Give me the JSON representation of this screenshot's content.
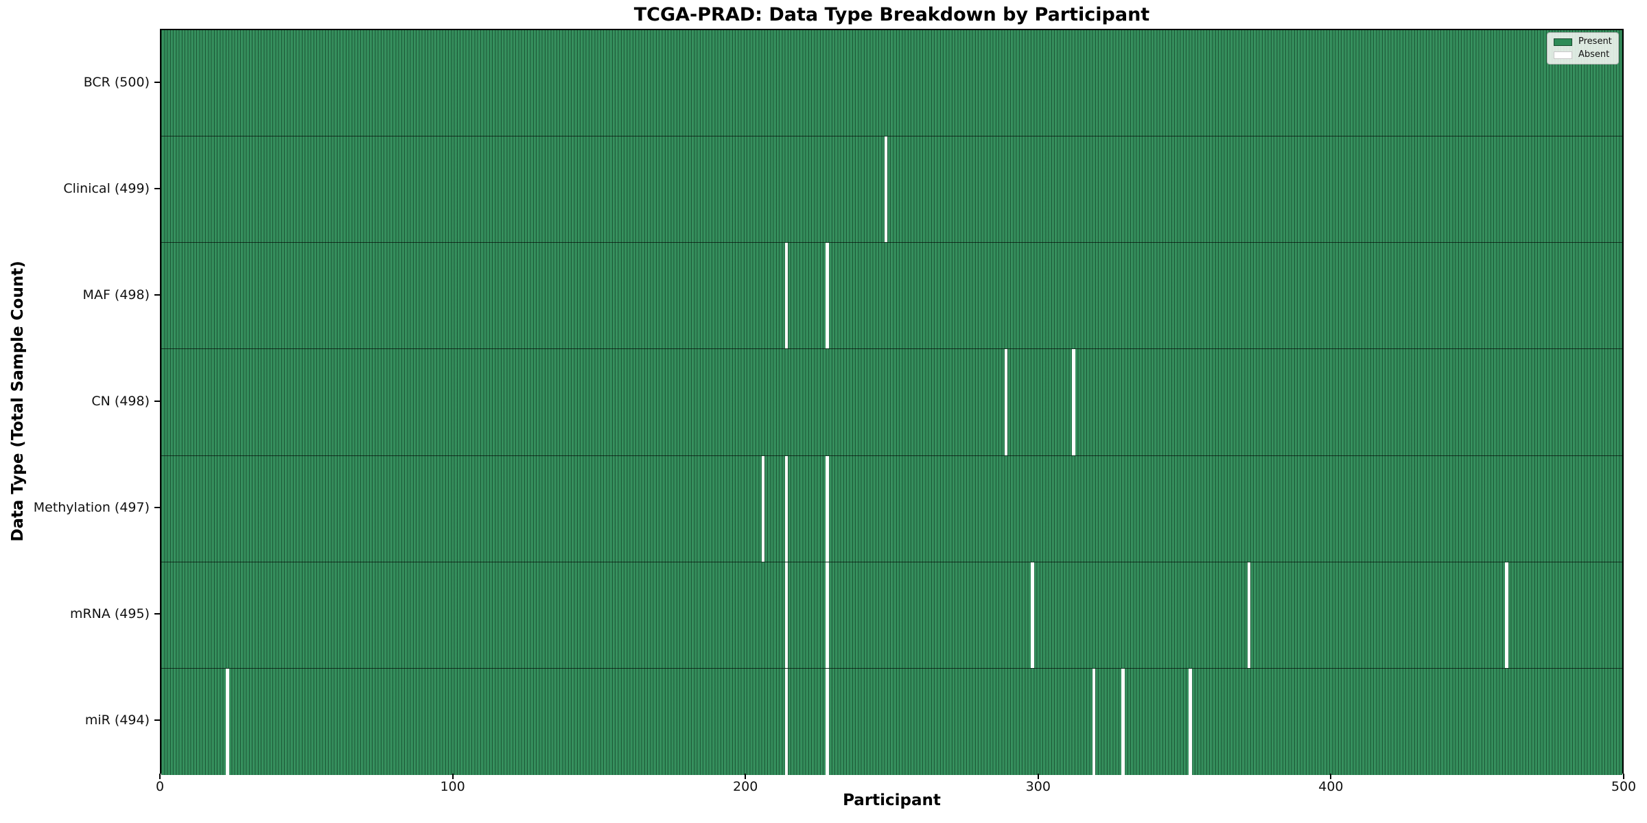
{
  "title": "TCGA-PRAD: Data Type Breakdown by Participant",
  "chart_data": {
    "type": "heatmap",
    "title": "TCGA-PRAD: Data Type Breakdown by Participant",
    "xlabel": "Participant",
    "ylabel": "Data Type (Total Sample Count)",
    "x_range": [
      0,
      500
    ],
    "n_participants": 500,
    "x_ticks": [
      "0",
      "100",
      "200",
      "300",
      "400",
      "500"
    ],
    "x_tick_values": [
      0,
      100,
      200,
      300,
      400,
      500
    ],
    "grid": false,
    "colors": {
      "present": "#2e8b57",
      "absent": "#ffffff",
      "cell_edge": "rgba(0,10,5,0.40)",
      "row_divider": "rgba(0,0,0,0.65)"
    },
    "legend": {
      "position": "upper right",
      "entries": [
        {
          "label": "Present",
          "color": "#2e8b57"
        },
        {
          "label": "Absent",
          "color": "#ffffff"
        }
      ]
    },
    "rows": [
      {
        "data_type": "BCR",
        "label": "BCR (500)",
        "present_count": 500,
        "absent_participants": []
      },
      {
        "data_type": "Clinical",
        "label": "Clinical (499)",
        "present_count": 499,
        "absent_participants": [
          247
        ]
      },
      {
        "data_type": "MAF",
        "label": "MAF (498)",
        "present_count": 498,
        "absent_participants": [
          213,
          227
        ]
      },
      {
        "data_type": "CN",
        "label": "CN (498)",
        "present_count": 498,
        "absent_participants": [
          288,
          311
        ]
      },
      {
        "data_type": "Methylation",
        "label": "Methylation (497)",
        "present_count": 497,
        "absent_participants": [
          205,
          213,
          227
        ]
      },
      {
        "data_type": "mRNA",
        "label": "mRNA (495)",
        "present_count": 495,
        "absent_participants": [
          213,
          227,
          297,
          371,
          459
        ]
      },
      {
        "data_type": "miR",
        "label": "miR (494)",
        "present_count": 494,
        "absent_participants": [
          22,
          213,
          227,
          318,
          328,
          351
        ]
      }
    ]
  }
}
